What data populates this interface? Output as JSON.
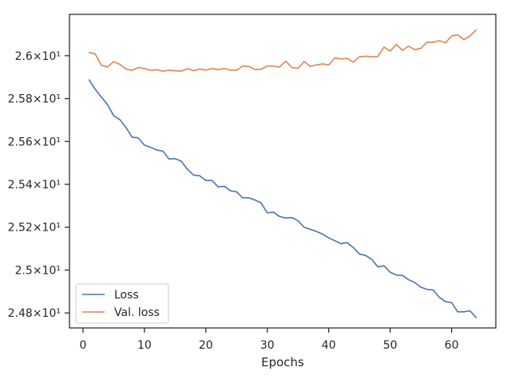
{
  "chart_data": {
    "type": "line",
    "title": "",
    "xlabel": "Epochs",
    "ylabel": "",
    "xlim": [
      -2.2,
      67.2
    ],
    "ylim": [
      24.73,
      26.193
    ],
    "grid": false,
    "legend_position": "lower-left",
    "x_ticks": [
      0,
      10,
      20,
      30,
      40,
      50,
      60
    ],
    "x_tick_labels": [
      "0",
      "10",
      "20",
      "30",
      "40",
      "50",
      "60"
    ],
    "y_ticks": [
      24.8,
      25.0,
      25.2,
      25.4,
      25.6,
      25.8,
      26.0
    ],
    "y_tick_labels": [
      "2.48×10¹",
      "2.5×10¹",
      "2.52×10¹",
      "2.54×10¹",
      "2.56×10¹",
      "2.58×10¹",
      "2.6×10¹"
    ],
    "colors": {
      "Loss": "#4c72b0",
      "Val. loss": "#dd8452"
    },
    "x": [
      1,
      2,
      3,
      4,
      5,
      6,
      7,
      8,
      9,
      10,
      11,
      12,
      13,
      14,
      15,
      16,
      17,
      18,
      19,
      20,
      21,
      22,
      23,
      24,
      25,
      26,
      27,
      28,
      29,
      30,
      31,
      32,
      33,
      34,
      35,
      36,
      37,
      38,
      39,
      40,
      41,
      42,
      43,
      44,
      45,
      46,
      47,
      48,
      49,
      50,
      51,
      52,
      53,
      54,
      55,
      56,
      57,
      58,
      59,
      60,
      61,
      62,
      63,
      64
    ],
    "series": [
      {
        "name": "Loss",
        "values": [
          25.887,
          25.843,
          25.807,
          25.772,
          25.72,
          25.702,
          25.665,
          25.62,
          25.617,
          25.583,
          25.573,
          25.56,
          25.555,
          25.518,
          25.52,
          25.508,
          25.47,
          25.443,
          25.44,
          25.418,
          25.418,
          25.388,
          25.391,
          25.37,
          25.365,
          25.337,
          25.337,
          25.327,
          25.313,
          25.267,
          25.27,
          25.25,
          25.243,
          25.245,
          25.23,
          25.2,
          25.19,
          25.18,
          25.168,
          25.15,
          25.137,
          25.123,
          25.128,
          25.105,
          25.075,
          25.068,
          25.05,
          25.015,
          25.02,
          24.99,
          24.977,
          24.975,
          24.955,
          24.942,
          24.92,
          24.91,
          24.907,
          24.873,
          24.853,
          24.848,
          24.805,
          24.805,
          24.81,
          24.778
        ]
      },
      {
        "name": "Val. loss",
        "values": [
          26.015,
          26.008,
          25.955,
          25.948,
          25.972,
          25.96,
          25.938,
          25.932,
          25.945,
          25.94,
          25.932,
          25.935,
          25.928,
          25.932,
          25.93,
          25.928,
          25.94,
          25.93,
          25.938,
          25.933,
          25.94,
          25.935,
          25.94,
          25.933,
          25.932,
          25.952,
          25.95,
          25.935,
          25.937,
          25.952,
          25.952,
          25.947,
          25.975,
          25.945,
          25.942,
          25.973,
          25.95,
          25.957,
          25.962,
          25.957,
          25.99,
          25.985,
          25.988,
          25.97,
          25.995,
          25.998,
          25.995,
          25.997,
          26.04,
          26.022,
          26.053,
          26.025,
          26.045,
          26.028,
          26.035,
          26.063,
          26.063,
          26.07,
          26.06,
          26.092,
          26.098,
          26.075,
          26.092,
          26.12
        ]
      }
    ]
  }
}
